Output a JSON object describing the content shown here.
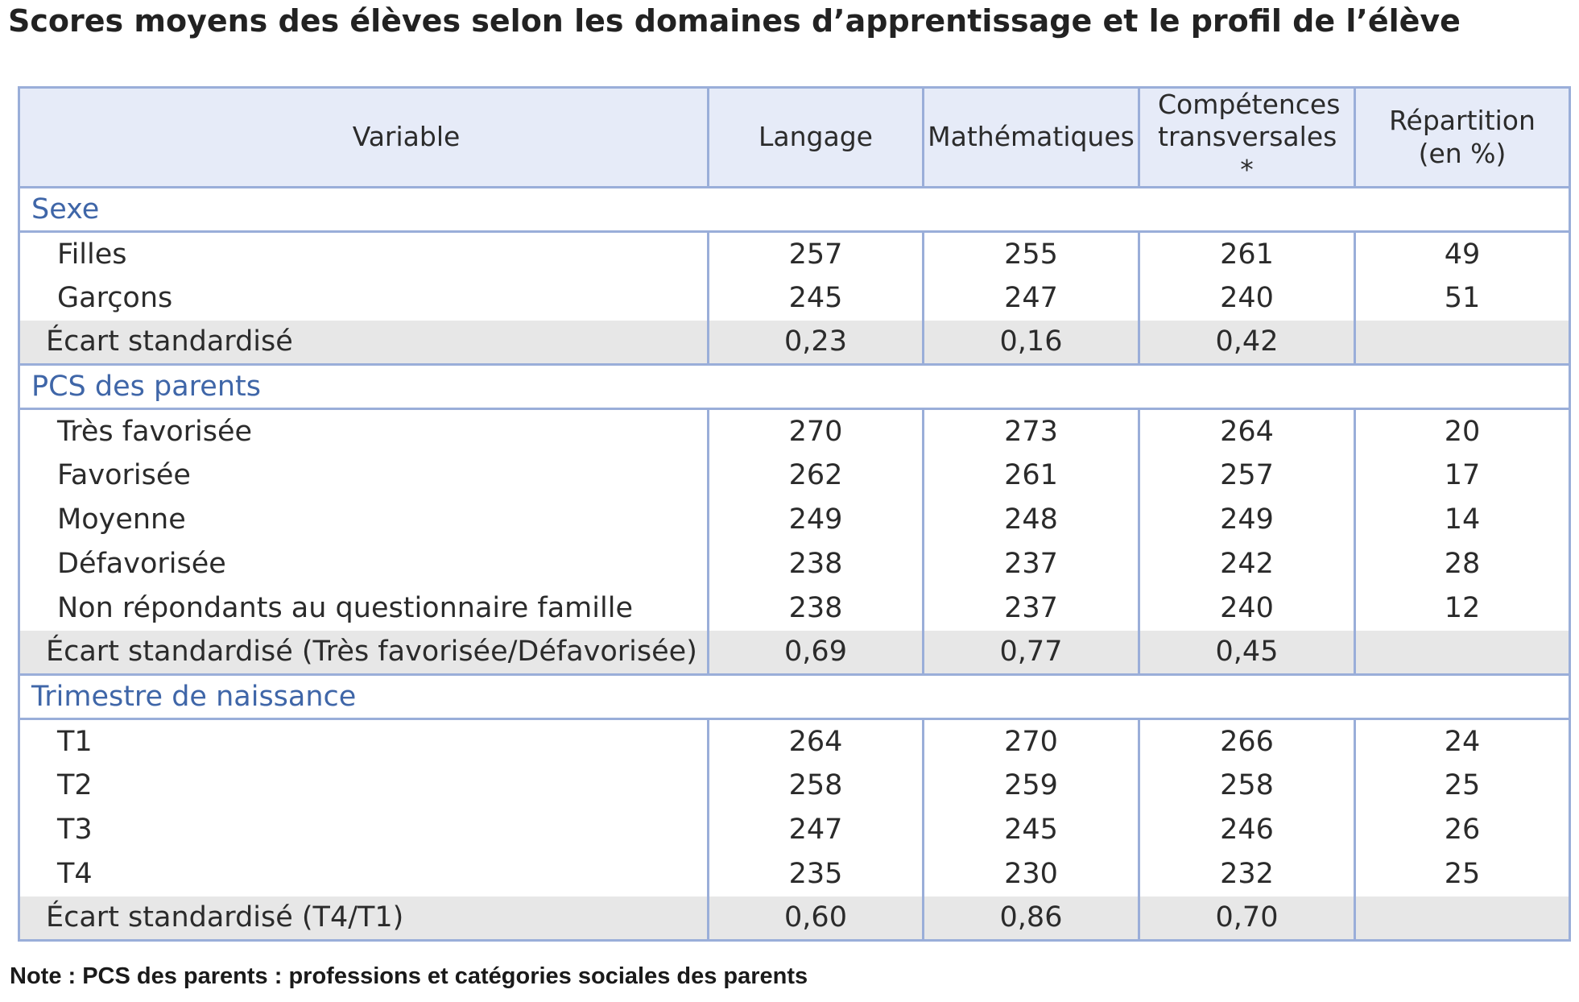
{
  "title": "Scores moyens des élèves selon les domaines d’apprentissage et le profil de l’élève",
  "table": {
    "headers": [
      "Variable",
      "Langage",
      "Mathématiques",
      "Compétences transversales *",
      "Répartition (en %)"
    ],
    "sections": [
      {
        "name": "Sexe",
        "rows": [
          {
            "label": "Filles",
            "values": [
              "257",
              "255",
              "261",
              "49"
            ]
          },
          {
            "label": "Garçons",
            "values": [
              "245",
              "247",
              "240",
              "51"
            ]
          }
        ],
        "ecart": {
          "label": "Écart standardisé",
          "values": [
            "0,23",
            "0,16",
            "0,42",
            ""
          ]
        }
      },
      {
        "name": "PCS des parents",
        "rows": [
          {
            "label": "Très favorisée",
            "values": [
              "270",
              "273",
              "264",
              "20"
            ]
          },
          {
            "label": "Favorisée",
            "values": [
              "262",
              "261",
              "257",
              "17"
            ]
          },
          {
            "label": "Moyenne",
            "values": [
              "249",
              "248",
              "249",
              "14"
            ]
          },
          {
            "label": "Défavorisée",
            "values": [
              "238",
              "237",
              "242",
              "28"
            ]
          },
          {
            "label": "Non répondants au questionnaire famille",
            "values": [
              "238",
              "237",
              "240",
              "12"
            ]
          }
        ],
        "ecart": {
          "label": "Écart standardisé (Très favorisée/Défavorisée)",
          "values": [
            "0,69",
            "0,77",
            "0,45",
            ""
          ]
        }
      },
      {
        "name": "Trimestre de naissance",
        "rows": [
          {
            "label": "T1",
            "values": [
              "264",
              "270",
              "266",
              "24"
            ]
          },
          {
            "label": "T2",
            "values": [
              "258",
              "259",
              "258",
              "25"
            ]
          },
          {
            "label": "T3",
            "values": [
              "247",
              "245",
              "246",
              "26"
            ]
          },
          {
            "label": "T4",
            "values": [
              "235",
              "230",
              "232",
              "25"
            ]
          }
        ],
        "ecart": {
          "label": "Écart standardisé (T4/T1)",
          "values": [
            "0,60",
            "0,86",
            "0,70",
            ""
          ]
        }
      }
    ]
  },
  "note": "Note : PCS des parents : professions et catégories sociales des parents"
}
